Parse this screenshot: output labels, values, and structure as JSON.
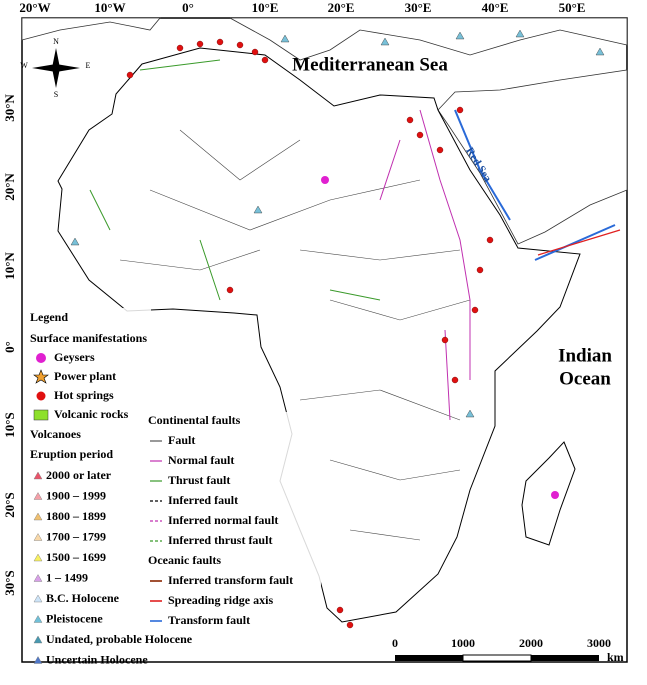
{
  "axes": {
    "longitude_labels": [
      "20°W",
      "10°W",
      "0°",
      "10°E",
      "20°E",
      "30°E",
      "40°E",
      "50°E"
    ],
    "latitude_labels": [
      "30°N",
      "20°N",
      "10°N",
      "0°",
      "10°S",
      "20°S",
      "30°S"
    ]
  },
  "labels": {
    "sea": "Mediterranean Sea",
    "ocean_line1": "Indian",
    "ocean_line2": "Ocean",
    "red_sea": "Red Sea"
  },
  "compass": {
    "n": "N",
    "s": "S",
    "e": "E",
    "w": "W"
  },
  "scale_bar": {
    "ticks": [
      0,
      1000,
      2000,
      3000
    ],
    "unit": "km"
  },
  "legend": {
    "title": "Legend",
    "surface": {
      "heading": "Surface manifestations",
      "items": [
        "Geysers",
        "Power plant",
        "Hot springs",
        "Volcanic rocks"
      ]
    },
    "volcanoes": {
      "heading": "Volcanoes",
      "subheading": "Eruption period",
      "items": [
        "2000 or later",
        "1900 – 1999",
        "1800 – 1899",
        "1700 – 1799",
        "1500 – 1699",
        "1 – 1499",
        "B.C. Holocene",
        "Pleistocene",
        "Undated, probable Holocene",
        "Uncertain Holocene"
      ]
    },
    "continental_faults": {
      "heading": "Continental faults",
      "items": [
        "Fault",
        "Normal fault",
        "Thrust fault",
        "Inferred fault",
        "Inferred normal fault",
        "Inferred thrust fault"
      ]
    },
    "oceanic_faults": {
      "heading": "Oceanic faults",
      "items": [
        "Inferred transform fault",
        "Spreading ridge axis",
        "Transform fault"
      ]
    }
  }
}
